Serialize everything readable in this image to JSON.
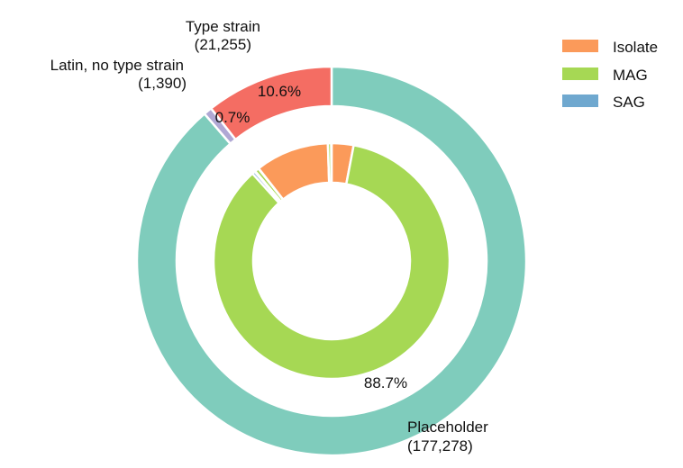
{
  "chart_data": {
    "type": "pie",
    "subtype": "nested-donut",
    "outer_ring": {
      "slices": [
        {
          "label": "Placeholder",
          "count": "(177,278)",
          "percent": "88.7%",
          "value": 177278,
          "color": "#7fccbc"
        },
        {
          "label": "Latin, no type strain",
          "count": "(1,390)",
          "percent": "0.7%",
          "value": 1390,
          "color": "#b0a8d4"
        },
        {
          "label": "Type strain",
          "count": "(21,255)",
          "percent": "10.6%",
          "value": 21255,
          "color": "#f46d63"
        }
      ]
    },
    "inner_ring": {
      "slices": [
        {
          "category": "Placeholder",
          "series": "Isolate",
          "value": 3.0,
          "color": "#fb9a5a"
        },
        {
          "category": "Placeholder",
          "series": "MAG",
          "value": 85.3,
          "color": "#a6d854"
        },
        {
          "category": "Placeholder",
          "series": "SAG",
          "value": 0.4,
          "color": "#6fa8cf"
        },
        {
          "category": "Latin, no type strain",
          "series": "Isolate",
          "value": 0.1,
          "color": "#fb9a5a"
        },
        {
          "category": "Latin, no type strain",
          "series": "MAG",
          "value": 0.55,
          "color": "#a6d854"
        },
        {
          "category": "Latin, no type strain",
          "series": "SAG",
          "value": 0.05,
          "color": "#6fa8cf"
        },
        {
          "category": "Type strain",
          "series": "Isolate",
          "value": 10.1,
          "color": "#fb9a5a"
        },
        {
          "category": "Type strain",
          "series": "MAG",
          "value": 0.45,
          "color": "#a6d854"
        },
        {
          "category": "Type strain",
          "series": "SAG",
          "value": 0.05,
          "color": "#6fa8cf"
        }
      ]
    },
    "legend": {
      "placement": "top-right",
      "entries": [
        {
          "label": "Isolate",
          "color": "#fb9a5a"
        },
        {
          "label": "MAG",
          "color": "#a6d854"
        },
        {
          "label": "SAG",
          "color": "#6fa8cf"
        }
      ]
    }
  }
}
